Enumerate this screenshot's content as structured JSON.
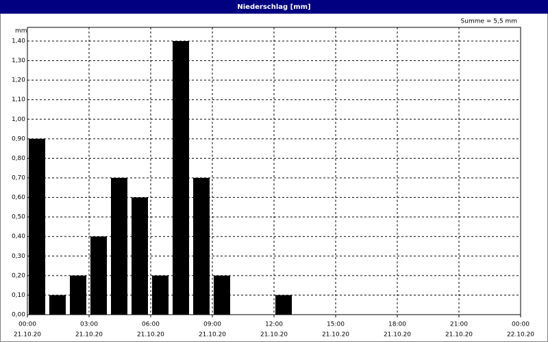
{
  "chart_data": {
    "type": "bar",
    "title": "Niederschlag [mm]",
    "y_label": "mm",
    "annotation": "Summe = 5,5 mm",
    "x": [
      0,
      1,
      2,
      3,
      4,
      5,
      6,
      7,
      8,
      9,
      10,
      11,
      12,
      13,
      14,
      15,
      16,
      17,
      18,
      19,
      20,
      21,
      22,
      23
    ],
    "values": [
      0.9,
      0.1,
      0.2,
      0.4,
      0.7,
      0.6,
      0.2,
      1.4,
      0.7,
      0.2,
      0,
      0,
      0.1,
      0,
      0,
      0,
      0,
      0,
      0,
      0,
      0,
      0,
      0,
      0
    ],
    "color": "#000000",
    "xlim": [
      0,
      24
    ],
    "bar_width": 1,
    "xticks": [
      {
        "value": 0,
        "label": [
          "00:00",
          "21.10.20"
        ]
      },
      {
        "value": 3,
        "label": [
          "03:00",
          "21.10.20"
        ]
      },
      {
        "value": 6,
        "label": [
          "06:00",
          "21.10.20"
        ]
      },
      {
        "value": 9,
        "label": [
          "09:00",
          "21.10.20"
        ]
      },
      {
        "value": 12,
        "label": [
          "12:00",
          "21.10.20"
        ]
      },
      {
        "value": 15,
        "label": [
          "15:00",
          "21.10.20"
        ]
      },
      {
        "value": 18,
        "label": [
          "18:00",
          "21.10.20"
        ]
      },
      {
        "value": 21,
        "label": [
          "21:00",
          "21.10.20"
        ]
      },
      {
        "value": 24,
        "label": [
          "00:00",
          "22.10.20"
        ]
      }
    ],
    "ylim": [
      0,
      1.47
    ],
    "yticks": [
      {
        "value": 0,
        "label": "0,00"
      },
      {
        "value": 0.1,
        "label": "0,10"
      },
      {
        "value": 0.2,
        "label": "0,20"
      },
      {
        "value": 0.3,
        "label": "0,30"
      },
      {
        "value": 0.4,
        "label": "0,40"
      },
      {
        "value": 0.5,
        "label": "0,50"
      },
      {
        "value": 0.6,
        "label": "0,60"
      },
      {
        "value": 0.7,
        "label": "0,70"
      },
      {
        "value": 0.8,
        "label": "0,80"
      },
      {
        "value": 0.9,
        "label": "0,90"
      },
      {
        "value": 1,
        "label": "1,00"
      },
      {
        "value": 1.1,
        "label": "1,10"
      },
      {
        "value": 1.2,
        "label": "1,20"
      },
      {
        "value": 1.3,
        "label": "1,30"
      },
      {
        "value": 1.4,
        "label": "1,40"
      }
    ],
    "grid": true
  }
}
